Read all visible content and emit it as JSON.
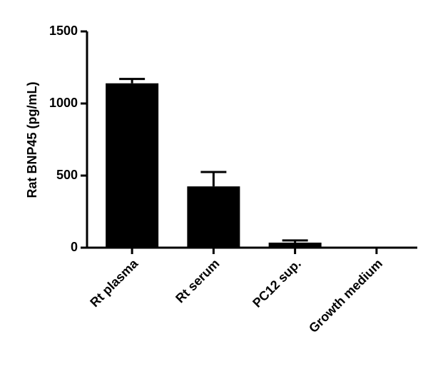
{
  "chart_data": {
    "type": "bar",
    "y_label": "Rat BNP45 (pg/mL)",
    "categories": [
      "Rt plasma",
      "Rt serum",
      "PC12 sup.",
      "Growth medium"
    ],
    "values": [
      1140,
      425,
      35,
      0
    ],
    "errors": [
      30,
      100,
      15,
      0
    ],
    "color": "#000000",
    "ylim": [
      0,
      1500
    ],
    "yticks": [
      0,
      500,
      1000,
      1500
    ]
  }
}
